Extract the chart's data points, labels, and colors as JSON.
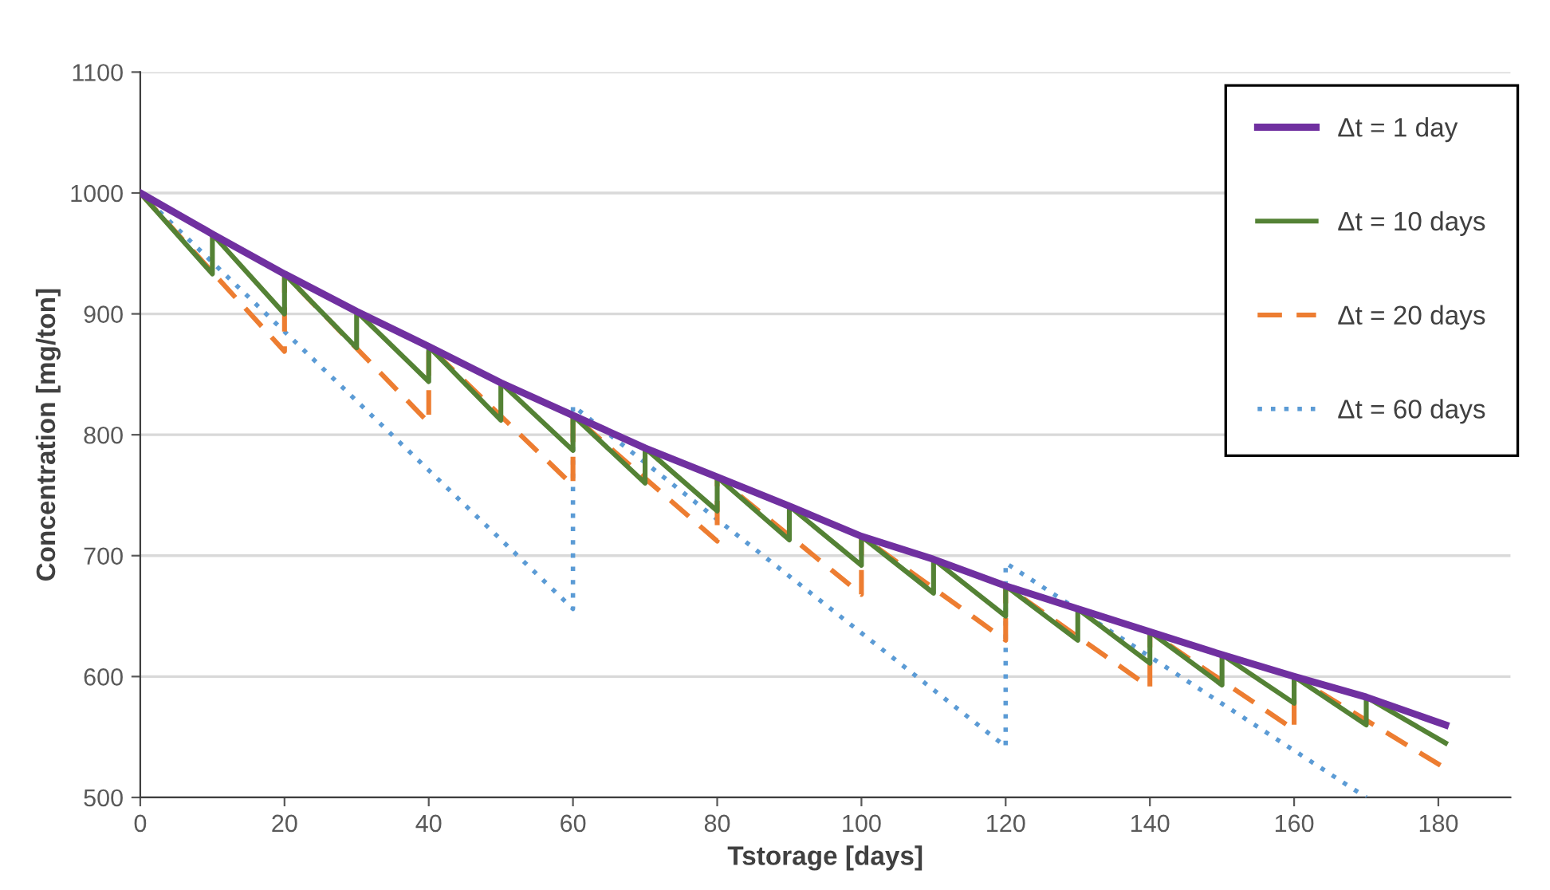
{
  "chart_data": {
    "type": "line",
    "xlabel": "Tstorage [days]",
    "ylabel": "Concentration [mg/ton]",
    "xlim": [
      0,
      190
    ],
    "xticks": [
      0,
      20,
      40,
      60,
      80,
      100,
      120,
      140,
      160,
      180
    ],
    "ylim": [
      500,
      1100
    ],
    "yticks": [
      500,
      600,
      700,
      800,
      900,
      1000,
      1100
    ],
    "grid": "y",
    "legend": "top right",
    "marker": "none",
    "series": [
      {
        "name": "Δt = 1 day",
        "color": "#7030a0",
        "line_style": "solid",
        "x": [
          0,
          10,
          20,
          30,
          40,
          50,
          60,
          70,
          80,
          90,
          100,
          110,
          120,
          130,
          140,
          150,
          160,
          170,
          181
        ],
        "values": [
          1000,
          966,
          933,
          902,
          873,
          843,
          816,
          789,
          765,
          741,
          716,
          697,
          675,
          656,
          637,
          618,
          600,
          583,
          560
        ]
      },
      {
        "name": "Δt = 10 days",
        "color": "#548235",
        "line_style": "solid",
        "x": [
          0,
          10,
          10,
          20,
          20,
          30,
          30,
          40,
          40,
          50,
          50,
          60,
          60,
          70,
          70,
          80,
          80,
          90,
          90,
          100,
          100,
          110,
          110,
          120,
          120,
          130,
          130,
          140,
          140,
          150,
          150,
          160,
          160,
          170,
          170,
          181
        ],
        "values": [
          1000,
          933,
          966,
          900,
          933,
          872,
          902,
          844,
          873,
          812,
          843,
          787,
          816,
          760,
          789,
          737,
          765,
          713,
          741,
          692,
          716,
          669,
          697,
          650,
          675,
          630,
          656,
          611,
          637,
          593,
          618,
          578,
          600,
          560,
          583,
          545
        ]
      },
      {
        "name": "Δt = 20 days",
        "color": "#ed7d31",
        "line_style": "dashed",
        "x": [
          0,
          20,
          20,
          40,
          40,
          60,
          60,
          80,
          80,
          100,
          100,
          120,
          120,
          140,
          140,
          160,
          160,
          181
        ],
        "values": [
          1000,
          869,
          933,
          810,
          873,
          758,
          816,
          712,
          765,
          668,
          716,
          630,
          675,
          591,
          637,
          556,
          600,
          524
        ]
      },
      {
        "name": "Δt = 60 days",
        "color": "#5b9bd5",
        "line_style": "dotted",
        "x": [
          0,
          60,
          60,
          120,
          120,
          170
        ],
        "values": [
          1000,
          656,
          824,
          542,
          694,
          500
        ]
      }
    ]
  }
}
